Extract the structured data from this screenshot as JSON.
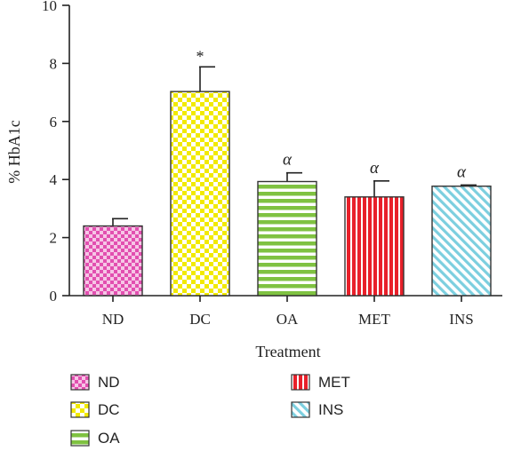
{
  "chart_data": {
    "type": "bar",
    "categories": [
      "ND",
      "DC",
      "OA",
      "MET",
      "INS"
    ],
    "values": [
      2.4,
      7.03,
      3.93,
      3.4,
      3.77
    ],
    "errors": [
      0.25,
      0.85,
      0.3,
      0.55,
      0.04
    ],
    "annotations": [
      "",
      "*",
      "α",
      "α",
      "α"
    ],
    "xlabel": "Treatment",
    "ylabel": "% HbA1c",
    "ylim": [
      0,
      10
    ],
    "yticks": [
      0,
      2,
      4,
      6,
      8,
      10
    ],
    "grid": false,
    "legend": {
      "position": "bottom",
      "entries": [
        "ND",
        "DC",
        "OA",
        "MET",
        "INS"
      ]
    },
    "colors": {
      "ND": {
        "bg": "#f6c6e6",
        "fg": "#e24fb0",
        "pattern": "checker"
      },
      "DC": {
        "bg": "#ffffff",
        "fg": "#f2ea00",
        "pattern": "checker"
      },
      "OA": {
        "bg": "#ffffff",
        "fg": "#7fc241",
        "pattern": "hlines"
      },
      "MET": {
        "bg": "#ffffff",
        "fg": "#e8202a",
        "pattern": "vlines"
      },
      "INS": {
        "bg": "#ffffff",
        "fg": "#7ccfdf",
        "pattern": "diag"
      }
    }
  }
}
